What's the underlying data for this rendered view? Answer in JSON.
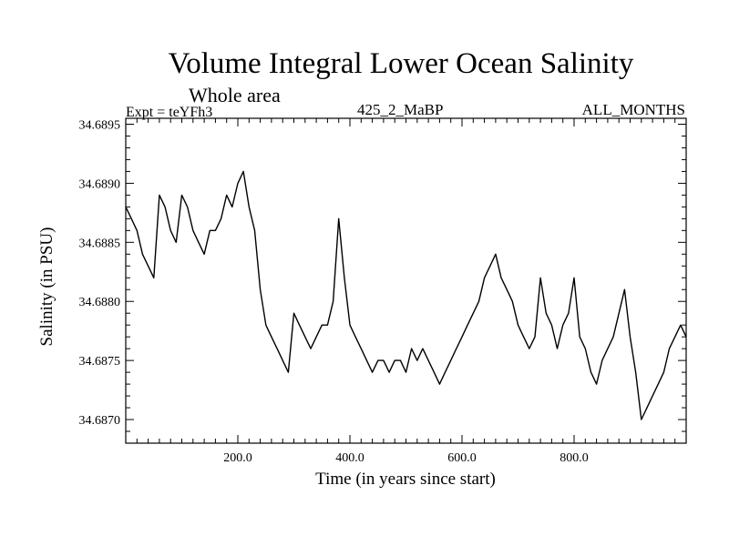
{
  "chart_data": {
    "type": "line",
    "title": "Volume Integral Lower Ocean Salinity",
    "subtitle": "Whole area",
    "experiment_label": "Expt = teYFh3",
    "run_label": "425_2_MaBP",
    "months_label": "ALL_MONTHS",
    "xlabel": "Time (in years since start)",
    "ylabel": "Salinity (in PSU)",
    "xlim": [
      0,
      1000
    ],
    "ylim": [
      34.6868,
      34.68955
    ],
    "x_ticks": [
      200,
      400,
      600,
      800
    ],
    "x_tick_labels": [
      "200.0",
      "400.0",
      "600.0",
      "800.0"
    ],
    "y_ticks": [
      34.687,
      34.6875,
      34.688,
      34.6885,
      34.689,
      34.6895
    ],
    "y_tick_labels": [
      "34.6870",
      "34.6875",
      "34.6880",
      "34.6885",
      "34.6890",
      "34.6895"
    ],
    "series": [
      {
        "name": "Salinity",
        "x": [
          0,
          10,
          20,
          30,
          40,
          50,
          60,
          70,
          80,
          90,
          100,
          110,
          120,
          130,
          140,
          150,
          160,
          170,
          180,
          190,
          200,
          210,
          220,
          230,
          240,
          250,
          260,
          270,
          280,
          290,
          300,
          310,
          320,
          330,
          340,
          350,
          360,
          370,
          380,
          390,
          400,
          410,
          420,
          430,
          440,
          450,
          460,
          470,
          480,
          490,
          500,
          510,
          520,
          530,
          540,
          550,
          560,
          570,
          580,
          590,
          600,
          610,
          620,
          630,
          640,
          650,
          660,
          670,
          680,
          690,
          700,
          710,
          720,
          730,
          740,
          750,
          760,
          770,
          780,
          790,
          800,
          810,
          820,
          830,
          840,
          850,
          860,
          870,
          880,
          890,
          900,
          910,
          920,
          930,
          940,
          950,
          960,
          970,
          980,
          990,
          1000
        ],
        "values": [
          34.6888,
          34.6887,
          34.6886,
          34.6884,
          34.6883,
          34.6882,
          34.6889,
          34.6888,
          34.6886,
          34.6885,
          34.6889,
          34.6888,
          34.6886,
          34.6885,
          34.6884,
          34.6886,
          34.6886,
          34.6887,
          34.6889,
          34.6888,
          34.689,
          34.6891,
          34.6888,
          34.6886,
          34.6881,
          34.6878,
          34.6877,
          34.6876,
          34.6875,
          34.6874,
          34.6879,
          34.6878,
          34.6877,
          34.6876,
          34.6877,
          34.6878,
          34.6878,
          34.688,
          34.6887,
          34.6882,
          34.6878,
          34.6877,
          34.6876,
          34.6875,
          34.6874,
          34.6875,
          34.6875,
          34.6874,
          34.6875,
          34.6875,
          34.6874,
          34.6876,
          34.6875,
          34.6876,
          34.6875,
          34.6874,
          34.6873,
          34.6874,
          34.6875,
          34.6876,
          34.6877,
          34.6878,
          34.6879,
          34.688,
          34.6882,
          34.6883,
          34.6884,
          34.6882,
          34.6881,
          34.688,
          34.6878,
          34.6877,
          34.6876,
          34.6877,
          34.6882,
          34.6879,
          34.6878,
          34.6876,
          34.6878,
          34.6879,
          34.6882,
          34.6877,
          34.6876,
          34.6874,
          34.6873,
          34.6875,
          34.6876,
          34.6877,
          34.6879,
          34.6881,
          34.6877,
          34.6874,
          34.687,
          34.6871,
          34.6872,
          34.6873,
          34.6874,
          34.6876,
          34.6877,
          34.6878,
          34.6877
        ],
        "color": "#000000"
      }
    ]
  }
}
